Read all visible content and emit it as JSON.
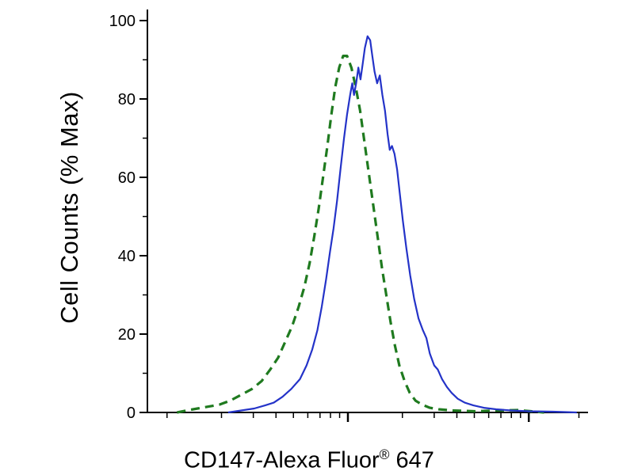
{
  "chart_data": {
    "type": "line",
    "title": "",
    "ylabel": "Cell Counts (% Max)",
    "xlabel": "CD147-Alexa Fluor® 647",
    "xlabel_parts": {
      "main": "CD147-Alexa Fluor",
      "sup": "®",
      "tail": " 647"
    },
    "ylim": [
      0,
      100
    ],
    "x_scale": "log",
    "grid": false,
    "legend_position": "none",
    "background_color": "#ffffff",
    "axis_color": "#000000",
    "y_major_ticks": [
      0,
      20,
      40,
      60,
      80,
      100
    ],
    "y_minor_ticks": [
      10,
      30,
      50,
      70,
      90
    ],
    "x_major_ticks_rel": [
      0.46,
      0.875
    ],
    "x_minor_ticks_rel": [
      0.045,
      0.17,
      0.243,
      0.295,
      0.335,
      0.368,
      0.396,
      0.42,
      0.441,
      0.585,
      0.658,
      0.71,
      0.75,
      0.783,
      0.811,
      0.835,
      0.856,
      0.99
    ],
    "series": [
      {
        "name": "green-dashed-histogram",
        "color": "#1f7a1f",
        "style": "dashed",
        "width": 3.2,
        "peak_value": 91,
        "points": [
          [
            0.068,
            0
          ],
          [
            0.09,
            0.5
          ],
          [
            0.115,
            1
          ],
          [
            0.14,
            1.5
          ],
          [
            0.165,
            2
          ],
          [
            0.19,
            3
          ],
          [
            0.215,
            4.5
          ],
          [
            0.24,
            6
          ],
          [
            0.262,
            8
          ],
          [
            0.282,
            11
          ],
          [
            0.3,
            14
          ],
          [
            0.316,
            18
          ],
          [
            0.332,
            22
          ],
          [
            0.347,
            27
          ],
          [
            0.36,
            32
          ],
          [
            0.372,
            38
          ],
          [
            0.383,
            45
          ],
          [
            0.393,
            52
          ],
          [
            0.403,
            60
          ],
          [
            0.413,
            68
          ],
          [
            0.422,
            76
          ],
          [
            0.431,
            83
          ],
          [
            0.44,
            88
          ],
          [
            0.449,
            91
          ],
          [
            0.458,
            91
          ],
          [
            0.468,
            88
          ],
          [
            0.478,
            83
          ],
          [
            0.488,
            77
          ],
          [
            0.498,
            69
          ],
          [
            0.508,
            61
          ],
          [
            0.518,
            53
          ],
          [
            0.528,
            45
          ],
          [
            0.538,
            37
          ],
          [
            0.548,
            30
          ],
          [
            0.558,
            23
          ],
          [
            0.568,
            17
          ],
          [
            0.578,
            12
          ],
          [
            0.59,
            8
          ],
          [
            0.602,
            5
          ],
          [
            0.615,
            3
          ],
          [
            0.63,
            2
          ],
          [
            0.648,
            1.2
          ],
          [
            0.668,
            0.8
          ],
          [
            0.7,
            0.5
          ],
          [
            0.75,
            0.3
          ],
          [
            0.8,
            0.5
          ],
          [
            0.85,
            0.6
          ],
          [
            0.88,
            0.3
          ],
          [
            0.91,
            0
          ]
        ]
      },
      {
        "name": "blue-solid-histogram",
        "color": "#2433c8",
        "style": "solid",
        "width": 2.2,
        "peak_value": 96,
        "points": [
          [
            0.185,
            0
          ],
          [
            0.215,
            0.5
          ],
          [
            0.245,
            1
          ],
          [
            0.27,
            1.8
          ],
          [
            0.29,
            2.5
          ],
          [
            0.31,
            4
          ],
          [
            0.33,
            6
          ],
          [
            0.35,
            8.5
          ],
          [
            0.365,
            12
          ],
          [
            0.378,
            16
          ],
          [
            0.39,
            21
          ],
          [
            0.4,
            27
          ],
          [
            0.41,
            34
          ],
          [
            0.419,
            41
          ],
          [
            0.427,
            47
          ],
          [
            0.435,
            54
          ],
          [
            0.443,
            62
          ],
          [
            0.451,
            70
          ],
          [
            0.458,
            76
          ],
          [
            0.465,
            81
          ],
          [
            0.47,
            84
          ],
          [
            0.474,
            81
          ],
          [
            0.479,
            84
          ],
          [
            0.484,
            88
          ],
          [
            0.489,
            85
          ],
          [
            0.494,
            89
          ],
          [
            0.499,
            93
          ],
          [
            0.505,
            96
          ],
          [
            0.511,
            95
          ],
          [
            0.516,
            91
          ],
          [
            0.521,
            87
          ],
          [
            0.527,
            84
          ],
          [
            0.533,
            86
          ],
          [
            0.539,
            81
          ],
          [
            0.545,
            77
          ],
          [
            0.551,
            71
          ],
          [
            0.556,
            67
          ],
          [
            0.561,
            68
          ],
          [
            0.567,
            66
          ],
          [
            0.573,
            62
          ],
          [
            0.579,
            56
          ],
          [
            0.586,
            49
          ],
          [
            0.594,
            42
          ],
          [
            0.603,
            35
          ],
          [
            0.612,
            29
          ],
          [
            0.622,
            24
          ],
          [
            0.632,
            21
          ],
          [
            0.64,
            19
          ],
          [
            0.648,
            15
          ],
          [
            0.658,
            12
          ],
          [
            0.666,
            11
          ],
          [
            0.676,
            8.5
          ],
          [
            0.687,
            6.5
          ],
          [
            0.698,
            5
          ],
          [
            0.712,
            3.5
          ],
          [
            0.728,
            2.5
          ],
          [
            0.748,
            1.8
          ],
          [
            0.772,
            1.2
          ],
          [
            0.8,
            0.8
          ],
          [
            0.835,
            0.5
          ],
          [
            0.875,
            0.3
          ],
          [
            0.93,
            0.2
          ],
          [
            0.985,
            0
          ]
        ]
      }
    ]
  }
}
